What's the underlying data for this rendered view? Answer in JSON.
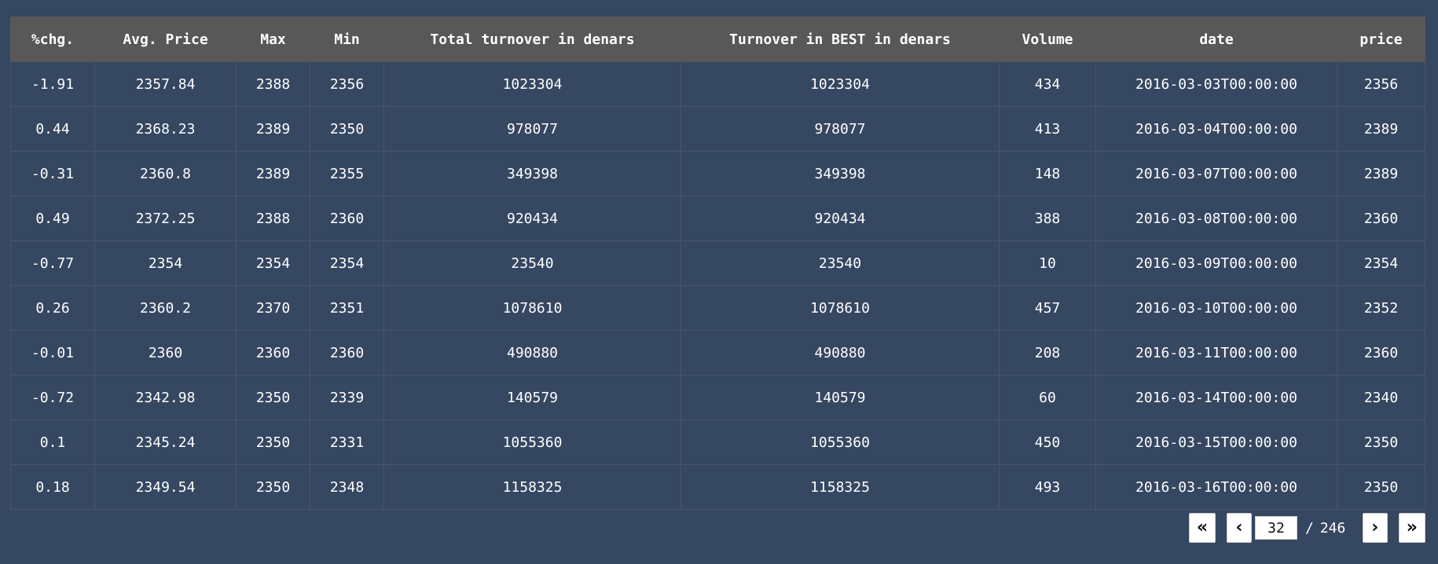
{
  "table": {
    "columns": [
      "%chg.",
      "Avg. Price",
      "Max",
      "Min",
      "Total turnover in denars",
      "Turnover in BEST in denars",
      "Volume",
      "date",
      "price"
    ],
    "rows": [
      [
        "-1.91",
        "2357.84",
        "2388",
        "2356",
        "1023304",
        "1023304",
        "434",
        "2016-03-03T00:00:00",
        "2356"
      ],
      [
        "0.44",
        "2368.23",
        "2389",
        "2350",
        "978077",
        "978077",
        "413",
        "2016-03-04T00:00:00",
        "2389"
      ],
      [
        "-0.31",
        "2360.8",
        "2389",
        "2355",
        "349398",
        "349398",
        "148",
        "2016-03-07T00:00:00",
        "2389"
      ],
      [
        "0.49",
        "2372.25",
        "2388",
        "2360",
        "920434",
        "920434",
        "388",
        "2016-03-08T00:00:00",
        "2360"
      ],
      [
        "-0.77",
        "2354",
        "2354",
        "2354",
        "23540",
        "23540",
        "10",
        "2016-03-09T00:00:00",
        "2354"
      ],
      [
        "0.26",
        "2360.2",
        "2370",
        "2351",
        "1078610",
        "1078610",
        "457",
        "2016-03-10T00:00:00",
        "2352"
      ],
      [
        "-0.01",
        "2360",
        "2360",
        "2360",
        "490880",
        "490880",
        "208",
        "2016-03-11T00:00:00",
        "2360"
      ],
      [
        "-0.72",
        "2342.98",
        "2350",
        "2339",
        "140579",
        "140579",
        "60",
        "2016-03-14T00:00:00",
        "2340"
      ],
      [
        "0.1",
        "2345.24",
        "2350",
        "2331",
        "1055360",
        "1055360",
        "450",
        "2016-03-15T00:00:00",
        "2350"
      ],
      [
        "0.18",
        "2349.54",
        "2350",
        "2348",
        "1158325",
        "1158325",
        "493",
        "2016-03-16T00:00:00",
        "2350"
      ]
    ]
  },
  "pager": {
    "first_icon": "double-chevron-left-icon",
    "prev_icon": "chevron-left-icon",
    "next_icon": "chevron-right-icon",
    "last_icon": "double-chevron-right-icon",
    "current_page": "32",
    "separator": "/",
    "total_pages": "246"
  }
}
